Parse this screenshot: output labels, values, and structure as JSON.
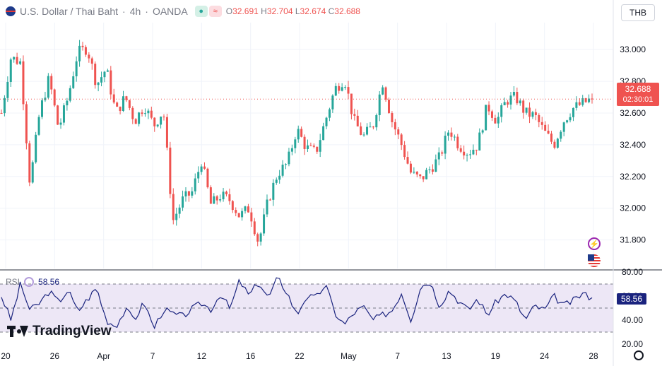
{
  "header": {
    "symbol": "U.S. Dollar / Thai Baht",
    "separator": "·",
    "interval": "4h",
    "source": "OANDA",
    "open_label": "O",
    "open": "32.691",
    "high_label": "H",
    "high": "32.704",
    "low_label": "L",
    "low": "32.674",
    "close_label": "C",
    "close": "32.688",
    "currency": "THB",
    "icons": [
      "flag-icon",
      "eye-icon",
      "waves-icon"
    ]
  },
  "last_price": {
    "value": "32.688",
    "countdown": "02:30:01"
  },
  "rsi": {
    "label": "RSI",
    "value": "58.56"
  },
  "brand": "TradingView",
  "colors": {
    "up": "#26a69a",
    "down": "#ef5350",
    "rsi": "#1a237e",
    "rsi_band": "#ede7f6"
  },
  "chart_data": [
    {
      "type": "candlestick",
      "price_axis": {
        "ticks": [
          "33.000",
          "32.800",
          "32.600",
          "32.400",
          "32.200",
          "32.000",
          "31.800"
        ],
        "range": [
          31.62,
          33.17
        ]
      },
      "x_ticks": [
        "20",
        "26",
        "Apr",
        "7",
        "12",
        "16",
        "22",
        "May",
        "7",
        "13",
        "19",
        "24",
        "28"
      ],
      "close_path": [
        32.6,
        32.95,
        32.92,
        32.15,
        32.6,
        32.82,
        32.5,
        32.7,
        32.98,
        33.01,
        32.78,
        32.88,
        32.6,
        32.7,
        32.55,
        32.65,
        32.52,
        32.62,
        31.92,
        32.05,
        32.1,
        32.3,
        32.02,
        32.08,
        32.05,
        31.95,
        32.0,
        31.78,
        32.05,
        32.22,
        32.28,
        32.5,
        32.38,
        32.35,
        32.55,
        32.75,
        32.82,
        32.55,
        32.45,
        32.52,
        32.8,
        32.55,
        32.4,
        32.22,
        32.18,
        32.25,
        32.32,
        32.5,
        32.4,
        32.35,
        32.4,
        32.65,
        32.55,
        32.68,
        32.7,
        32.6,
        32.58,
        32.48,
        32.4,
        32.55,
        32.63,
        32.66,
        32.69
      ],
      "last": 32.688
    },
    {
      "type": "line",
      "name": "RSI",
      "y_ticks": [
        "80.00",
        "60.00",
        "40.00",
        "20.00"
      ],
      "bands": [
        70,
        50,
        30
      ],
      "ylim": [
        20,
        80
      ],
      "values": [
        60,
        40,
        70,
        48,
        54,
        64,
        55,
        65,
        47,
        57,
        67,
        40,
        35,
        48,
        41,
        55,
        33,
        49,
        45,
        43,
        49,
        54,
        49,
        62,
        49,
        73,
        60,
        72,
        58,
        75,
        63,
        44,
        60,
        58,
        70,
        46,
        36,
        46,
        51,
        40,
        44,
        48,
        63,
        40,
        68,
        72,
        52,
        65,
        56,
        48,
        58,
        44,
        56,
        62,
        55,
        40,
        52,
        48,
        60,
        52,
        56,
        62,
        58.56
      ],
      "last": 58.56
    }
  ]
}
